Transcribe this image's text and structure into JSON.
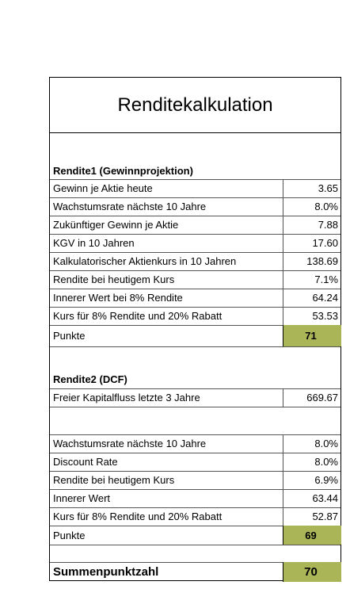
{
  "title": "Renditekalkulation",
  "sections": [
    {
      "heading": "Rendite1 (Gewinnprojektion)",
      "rows": [
        [
          "Gewinn je Aktie heute",
          "3.65"
        ],
        [
          "Wachstumsrate nächste 10 Jahre",
          "8.0%"
        ],
        [
          "Zukünftiger Gewinn je Aktie",
          "7.88"
        ],
        [
          "KGV in 10 Jahren",
          "17.60"
        ],
        [
          "Kalkulatorischer Aktienkurs in 10 Jahren",
          "138.69"
        ],
        [
          "Rendite bei heutigem Kurs",
          "7.1%"
        ],
        [
          "Innerer Wert bei 8% Rendite",
          "64.24"
        ],
        [
          "Kurs für 8% Rendite und 20% Rabatt",
          "53.53"
        ]
      ],
      "score_label": "Punkte",
      "score": "71"
    },
    {
      "heading": "Rendite2 (DCF)",
      "rows": [
        [
          "Freier Kapitalfluss letzte 3 Jahre",
          "669.67"
        ],
        [
          "Wachstumsrate nächste 10 Jahre",
          "8.0%"
        ],
        [
          "Discount Rate",
          "8.0%"
        ],
        [
          "Rendite bei heutigem Kurs",
          "6.9%"
        ],
        [
          "Innerer Wert",
          "63.44"
        ],
        [
          "Kurs für 8% Rendite und 20% Rabatt",
          "52.87"
        ]
      ],
      "score_label": "Punkte",
      "score": "69"
    }
  ],
  "total": {
    "label": "Summenpunktzahl",
    "value": "70"
  }
}
